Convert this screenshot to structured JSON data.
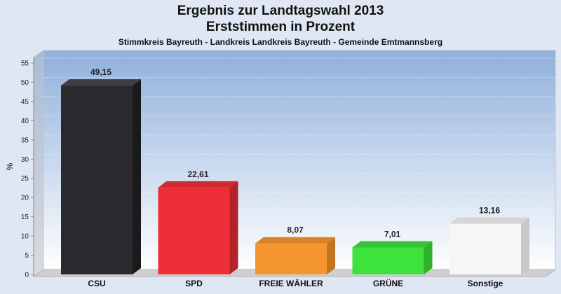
{
  "chart_data": {
    "type": "bar",
    "title": "Ergebnis zur Landtagswahl 2013",
    "subtitle": "Erststimmen in Prozent",
    "caption": "Stimmkreis Bayreuth - Landkreis Landkreis Bayreuth - Gemeinde Emtmannsberg",
    "ylabel": "%",
    "xlabel": "",
    "ylim": [
      0,
      55
    ],
    "yticks": [
      0,
      5,
      10,
      15,
      20,
      25,
      30,
      35,
      40,
      45,
      50,
      55
    ],
    "grid": true,
    "categories": [
      "CSU",
      "SPD",
      "FREIE WÄHLER",
      "GRÜNE",
      "Sonstige"
    ],
    "values": [
      49.15,
      22.61,
      8.07,
      7.01,
      13.16
    ],
    "value_labels": [
      "49,15",
      "22,61",
      "8,07",
      "7,01",
      "13,16"
    ],
    "colors": [
      "#2a2a2e",
      "#ee2f37",
      "#f5952f",
      "#3de23c",
      "#f6f6f6"
    ],
    "side_colors": [
      "#1a1a1d",
      "#b3232a",
      "#c2741f",
      "#2db02c",
      "#c8c8c8"
    ],
    "top_colors": [
      "#3e3e44",
      "#cf2a30",
      "#d9822a",
      "#34c434",
      "#d6d6d6"
    ]
  }
}
